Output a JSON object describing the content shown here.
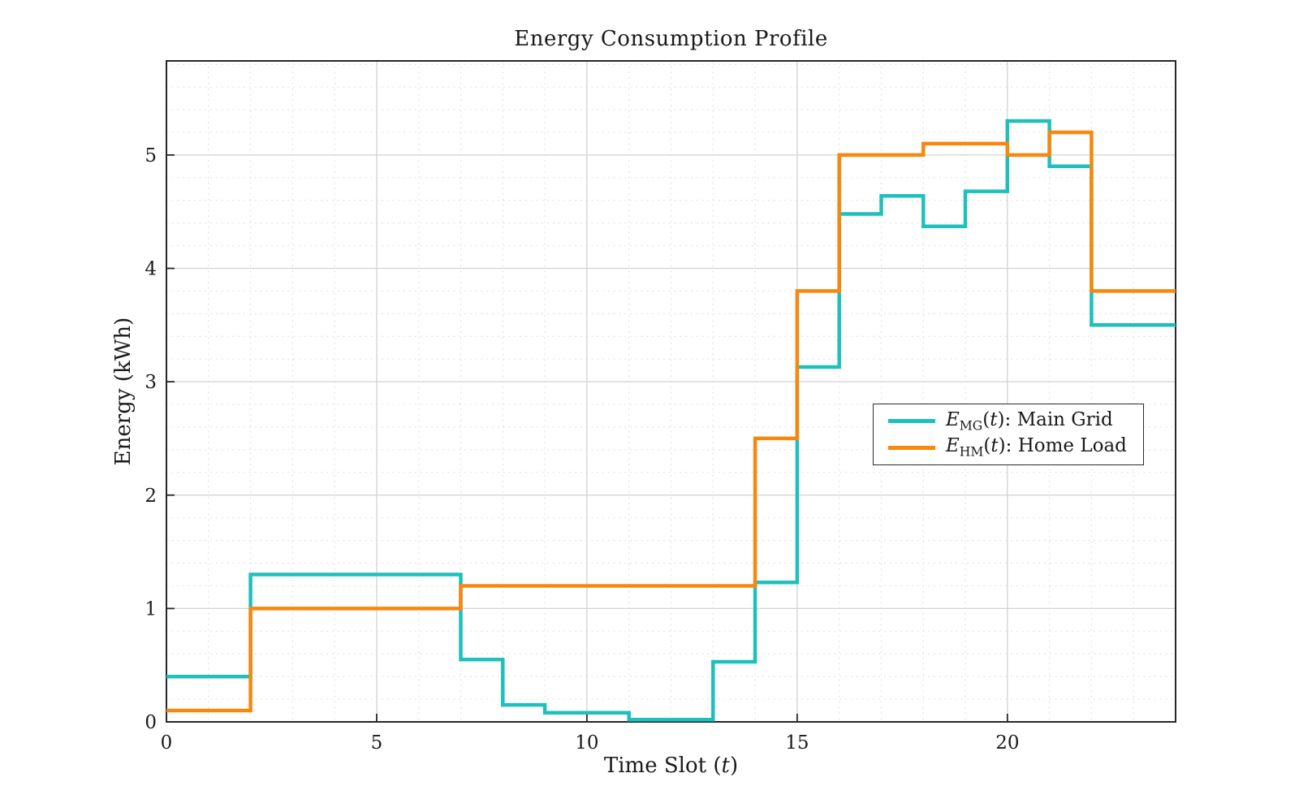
{
  "figure": {
    "title": "Energy Consumption Profile",
    "xlabel": "Time Slot (t)",
    "ylabel": "Energy (kWh)"
  },
  "legend": {
    "position": "center-right",
    "items": [
      {
        "formula": "E_{MG}(t):",
        "label": "Main Grid",
        "color": "#1ec0bc"
      },
      {
        "formula": "E_{HM}(t):",
        "label": "Home Load",
        "color": "#f8870e"
      }
    ]
  },
  "colors": {
    "main_grid_line": "#1ec0bc",
    "home_load_line": "#f8870e",
    "axis": "#262626",
    "major_grid": "#d2d2d2",
    "minor_grid": "#dcdcdc",
    "text": "#1a1a1a",
    "background": "#ffffff"
  },
  "chart_data": {
    "type": "line",
    "subtype": "step-post",
    "title": "Energy Consumption Profile",
    "xlabel": "Time Slot (t)",
    "ylabel": "Energy (kWh)",
    "xlim": [
      0,
      24
    ],
    "ylim": [
      0,
      5.83
    ],
    "x_ticks": [
      0,
      5,
      10,
      15,
      20
    ],
    "y_ticks": [
      0,
      1,
      2,
      3,
      4,
      5
    ],
    "x_minor_step": 1,
    "y_minor_step": 0.2,
    "grid": "major-solid, minor-dotted",
    "legend_position": "center-right",
    "x": [
      0,
      1,
      2,
      3,
      4,
      5,
      6,
      7,
      8,
      9,
      10,
      11,
      12,
      13,
      14,
      15,
      16,
      17,
      18,
      19,
      20,
      21,
      22,
      23
    ],
    "x_end": 24,
    "series": [
      {
        "name": "E_MG(t): Main Grid",
        "color": "#1ec0bc",
        "values": [
          0.4,
          0.4,
          1.3,
          1.3,
          1.3,
          1.3,
          1.3,
          0.55,
          0.15,
          0.08,
          0.08,
          0.02,
          0.02,
          0.53,
          1.23,
          3.13,
          4.48,
          4.64,
          4.37,
          4.68,
          5.3,
          4.9,
          3.5,
          3.5
        ]
      },
      {
        "name": "E_HM(t): Home Load",
        "color": "#f8870e",
        "values": [
          0.1,
          0.1,
          1.0,
          1.0,
          1.0,
          1.0,
          1.0,
          1.2,
          1.2,
          1.2,
          1.2,
          1.2,
          1.2,
          1.2,
          2.5,
          3.8,
          5.0,
          5.0,
          5.1,
          5.1,
          5.0,
          5.2,
          3.8,
          3.8
        ]
      }
    ]
  }
}
